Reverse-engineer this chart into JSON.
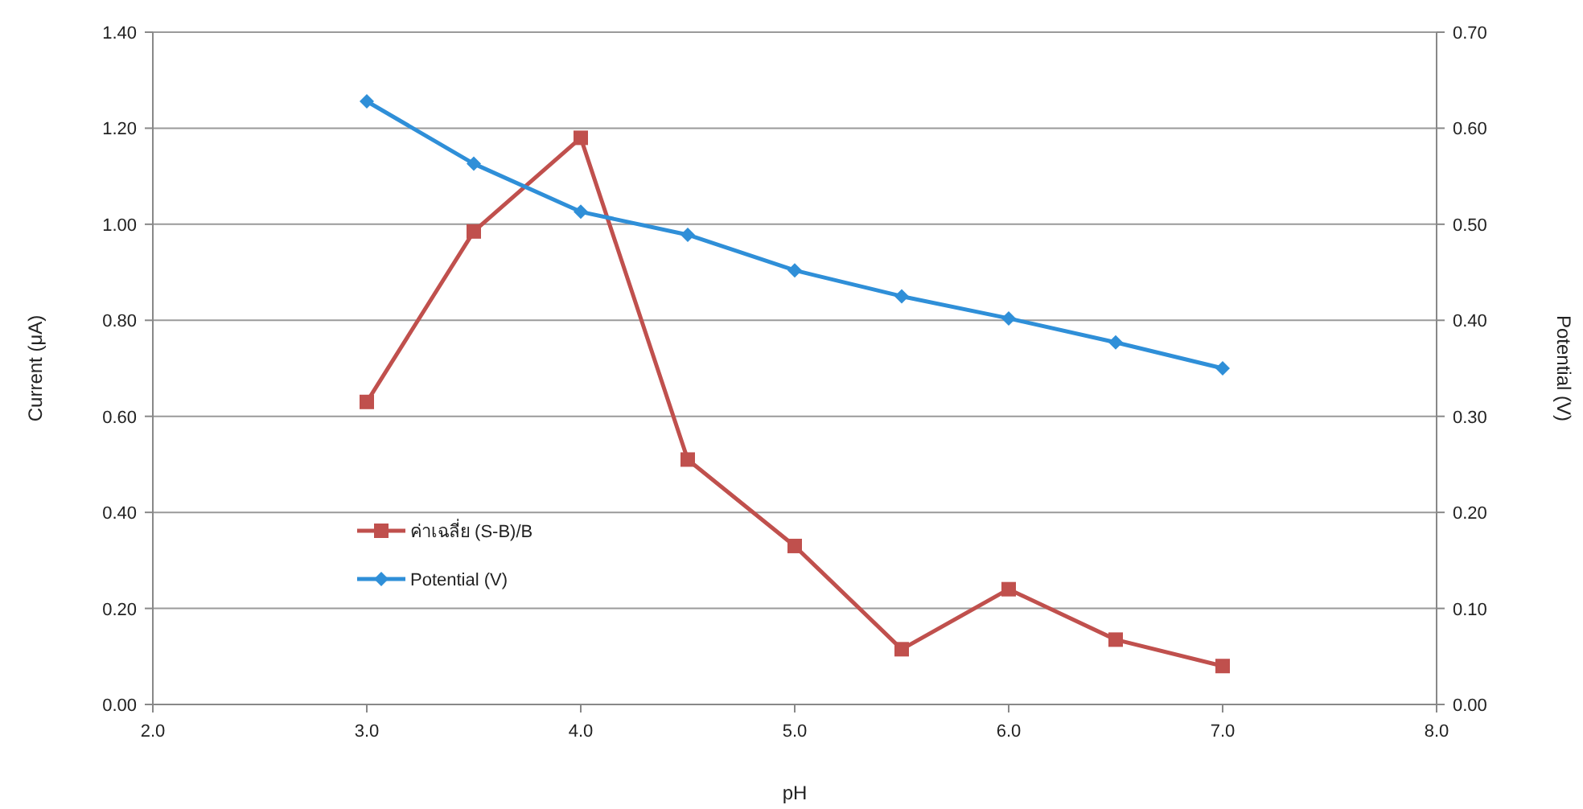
{
  "chart_data": {
    "type": "line",
    "xlabel": "pH",
    "ylabel": "Current (μA)",
    "y2label": "Potential (V)",
    "xlim": [
      2.0,
      8.0
    ],
    "xticks": [
      {
        "value": 2,
        "label": "2.0"
      },
      {
        "value": 3,
        "label": "3.0"
      },
      {
        "value": 4,
        "label": "4.0"
      },
      {
        "value": 5,
        "label": "5.0"
      },
      {
        "value": 6,
        "label": "6.0"
      },
      {
        "value": 7,
        "label": "7.0"
      },
      {
        "value": 8,
        "label": "8.0"
      }
    ],
    "ylim": [
      0,
      1.4
    ],
    "yticks": [
      {
        "value": 0,
        "label": "0.00"
      },
      {
        "value": 0.2,
        "label": "0.20"
      },
      {
        "value": 0.4,
        "label": "0.40"
      },
      {
        "value": 0.6,
        "label": "0.60"
      },
      {
        "value": 0.8,
        "label": "0.80"
      },
      {
        "value": 1.0,
        "label": "1.00"
      },
      {
        "value": 1.2,
        "label": "1.20"
      },
      {
        "value": 1.4,
        "label": "1.40"
      }
    ],
    "y2lim": [
      0,
      0.7
    ],
    "y2ticks": [
      {
        "value": 0,
        "label": "0.00"
      },
      {
        "value": 0.1,
        "label": "0.10"
      },
      {
        "value": 0.2,
        "label": "0.20"
      },
      {
        "value": 0.3,
        "label": "0.30"
      },
      {
        "value": 0.4,
        "label": "0.40"
      },
      {
        "value": 0.5,
        "label": "0.50"
      },
      {
        "value": 0.6,
        "label": "0.60"
      },
      {
        "value": 0.7,
        "label": "0.70"
      }
    ],
    "x": [
      3.0,
      3.5,
      4.0,
      4.5,
      5.0,
      5.5,
      6.0,
      6.5,
      7.0
    ],
    "grid": "y",
    "legend": "left",
    "series": [
      {
        "name": "ค่าเฉลี่ย (S-B)/B",
        "color": "#c0504d",
        "marker": "square",
        "values": [
          0.63,
          0.985,
          1.18,
          0.51,
          0.33,
          0.115,
          0.24,
          0.135,
          0.08
        ]
      },
      {
        "name": "Potential (V)",
        "color": "#2f8fd8",
        "marker": "diamond",
        "axis": "y2",
        "values": [
          0.628,
          0.563,
          0.513,
          0.489,
          0.452,
          0.425,
          0.402,
          0.377,
          0.35
        ]
      }
    ]
  }
}
